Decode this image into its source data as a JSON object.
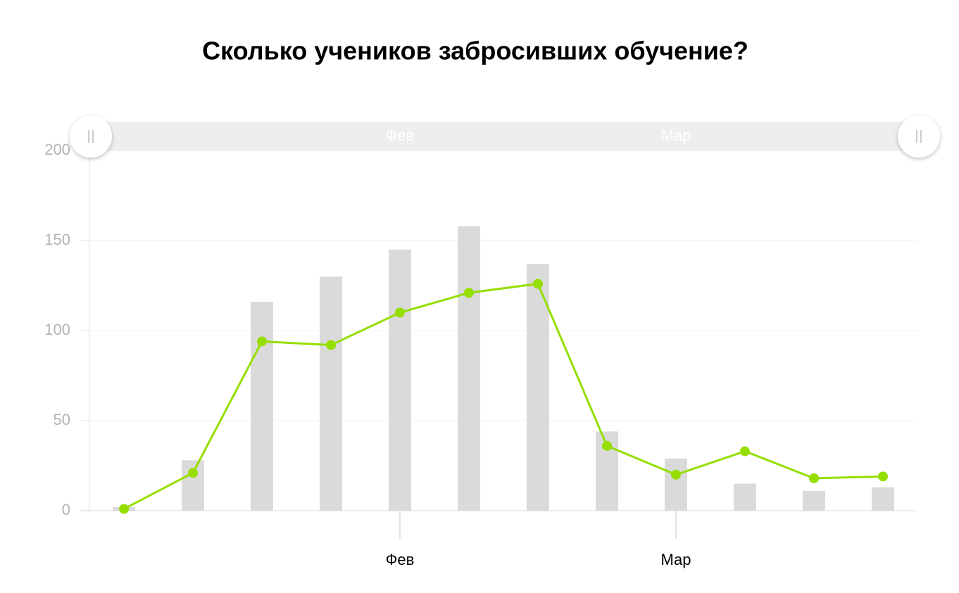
{
  "chart_data": {
    "type": "combo",
    "title": "Сколько учеников забросивших обучение?",
    "categories": [
      null,
      null,
      null,
      null,
      "Фев",
      null,
      null,
      null,
      "Мар",
      null,
      null,
      null
    ],
    "series": [
      {
        "type": "bar",
        "color": "#dadada",
        "values": [
          2,
          28,
          116,
          130,
          145,
          158,
          137,
          44,
          29,
          15,
          11,
          13
        ]
      },
      {
        "type": "line",
        "color": "#95de00",
        "values": [
          1,
          21,
          94,
          92,
          110,
          121,
          126,
          36,
          20,
          33,
          18,
          19
        ]
      }
    ],
    "ylim": [
      0,
      200
    ],
    "yticks": [
      0,
      50,
      100,
      150,
      200
    ],
    "grid": true,
    "navigator": {
      "labels": [
        null,
        null,
        null,
        null,
        "Фев",
        null,
        null,
        null,
        "Мар",
        null,
        null,
        null
      ]
    }
  }
}
